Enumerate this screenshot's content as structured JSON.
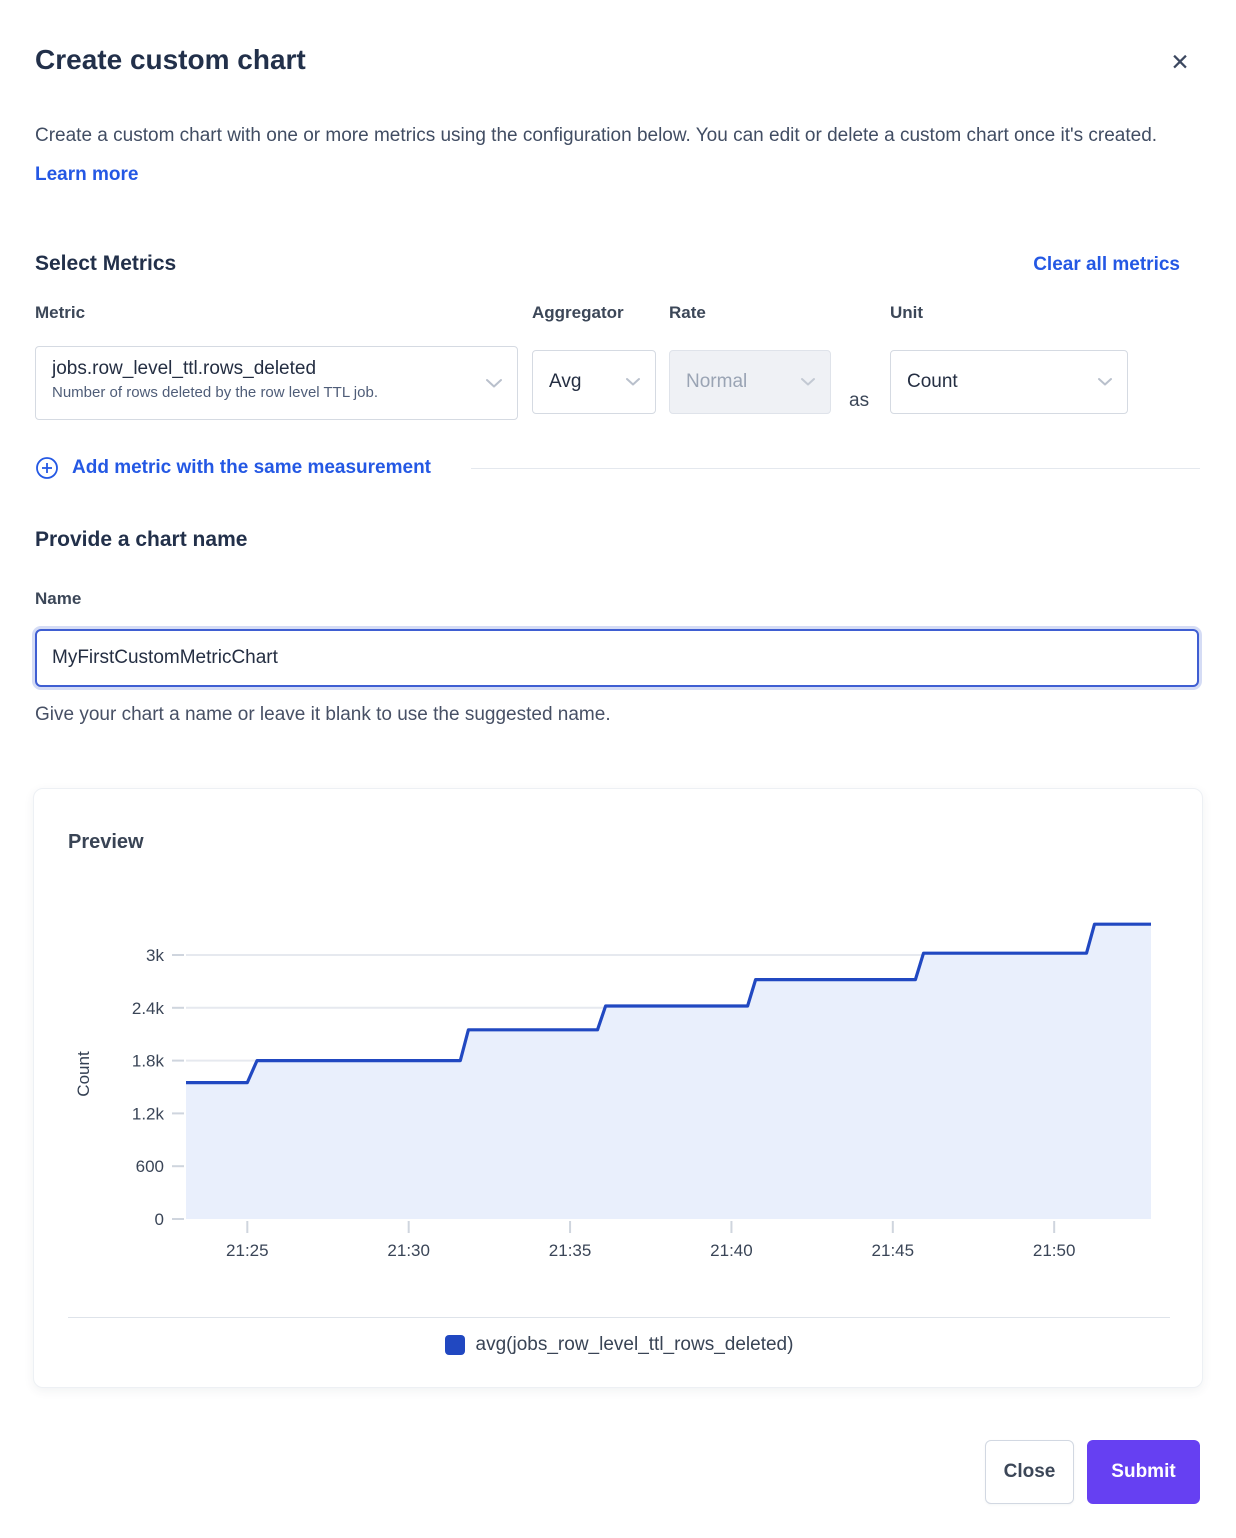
{
  "header": {
    "title": "Create custom chart",
    "close_icon": "✕",
    "description": "Create a custom chart with one or more metrics using the configuration below. You can edit or delete a custom chart once it's created.",
    "learn_more_label": "Learn more"
  },
  "metrics_section": {
    "heading": "Select Metrics",
    "clear_all_label": "Clear all metrics",
    "columns": {
      "metric": "Metric",
      "aggregator": "Aggregator",
      "rate": "Rate",
      "unit": "Unit"
    },
    "row": {
      "metric_value": "jobs.row_level_ttl.rows_deleted",
      "metric_description": "Number of rows deleted by the row level TTL job.",
      "aggregator_value": "Avg",
      "rate_value": "Normal",
      "rate_disabled": true,
      "as_label": "as",
      "unit_value": "Count"
    },
    "add_metric_label": "Add metric with the same measurement"
  },
  "chart_name_section": {
    "heading": "Provide a chart name",
    "name_label": "Name",
    "name_value": "MyFirstCustomMetricChart",
    "helper_text": "Give your chart a name or leave it blank to use the suggested name."
  },
  "preview": {
    "title": "Preview"
  },
  "chart_data": {
    "type": "area",
    "title": "Preview",
    "ylabel": "Count",
    "xlabel": "",
    "legend": "avg(jobs_row_level_ttl_rows_deleted)",
    "legend_position": "bottom",
    "grid": true,
    "x_unit": "time of day (21:xx), minutes after 21:00",
    "xlim_minutes": [
      23.1,
      53.0
    ],
    "ylim": [
      0,
      3350
    ],
    "xticks": [
      {
        "m": 25,
        "label": "21:25"
      },
      {
        "m": 30,
        "label": "21:30"
      },
      {
        "m": 35,
        "label": "21:35"
      },
      {
        "m": 40,
        "label": "21:40"
      },
      {
        "m": 45,
        "label": "21:45"
      },
      {
        "m": 50,
        "label": "21:50"
      }
    ],
    "yticks": [
      {
        "v": 0,
        "label": "0"
      },
      {
        "v": 600,
        "label": "600"
      },
      {
        "v": 1200,
        "label": "1.2k"
      },
      {
        "v": 1800,
        "label": "1.8k"
      },
      {
        "v": 2400,
        "label": "2.4k"
      },
      {
        "v": 3000,
        "label": "3k"
      }
    ],
    "series": [
      {
        "name": "avg(jobs_row_level_ttl_rows_deleted)",
        "line_color": "#2148c1",
        "fill_color": "#e9effc",
        "points_min_value": [
          [
            23.1,
            1550
          ],
          [
            25.0,
            1550
          ],
          [
            25.3,
            1800
          ],
          [
            31.6,
            1800
          ],
          [
            31.85,
            2150
          ],
          [
            35.85,
            2150
          ],
          [
            36.1,
            2420
          ],
          [
            40.5,
            2420
          ],
          [
            40.75,
            2720
          ],
          [
            45.7,
            2720
          ],
          [
            45.95,
            3020
          ],
          [
            51.0,
            3020
          ],
          [
            51.25,
            3350
          ],
          [
            53.0,
            3350
          ]
        ]
      }
    ]
  },
  "footer": {
    "close_label": "Close",
    "submit_label": "Submit"
  },
  "colors": {
    "accent_blue": "#2458e4",
    "line_blue": "#2148c1",
    "fill_blue": "#e9effc",
    "submit_purple": "#6640f2",
    "heading": "#22304a",
    "body_text": "#414d63",
    "gridline": "#e6e9ef",
    "tick_stub": "#cfd5de",
    "axis_text": "#3a4557"
  }
}
